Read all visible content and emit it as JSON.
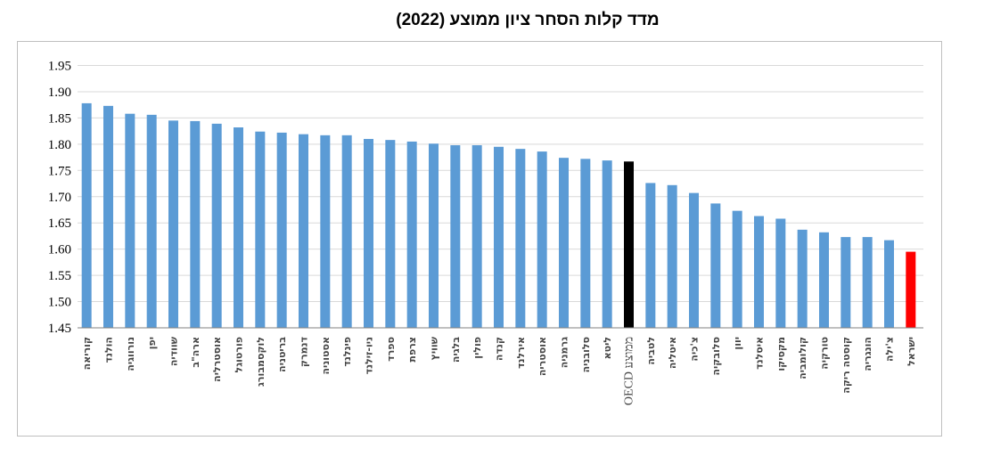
{
  "chart_data": {
    "type": "bar",
    "title": "מדד קלות הסחר ציון ממוצע (2022)",
    "xlabel": "",
    "ylabel": "",
    "ylim": [
      1.45,
      1.95
    ],
    "yticks": [
      "1.45",
      "1.50",
      "1.55",
      "1.60",
      "1.65",
      "1.70",
      "1.75",
      "1.80",
      "1.85",
      "1.90",
      "1.95"
    ],
    "grid": true,
    "legend": "none",
    "categories": [
      "קוריאה",
      "הולנד",
      "נורווגיה",
      "יפן",
      "שוודיה",
      "ארה\"ב",
      "אוסטרליה",
      "פורטוגל",
      "לוקסמבורג",
      "בריטניה",
      "דנמרק",
      "אסטוניה",
      "פינלנד",
      "ניו-זילנד",
      "ספרד",
      "צרפת",
      "שוויץ",
      "בלגיה",
      "פולין",
      "קנדה",
      "אירלנד",
      "אוסטריה",
      "גרמניה",
      "סלובניה",
      "ליטא",
      "OECD ממוצע",
      "לטביה",
      "איטליה",
      "צ'כיה",
      "סלובקיה",
      "יוון",
      "איסלנד",
      "מקסיקו",
      "קולומביה",
      "טורקיה",
      "קוסטה ריקה",
      "הונגריה",
      "צ'ילה",
      "ישראל"
    ],
    "values": [
      1.878,
      1.873,
      1.858,
      1.856,
      1.845,
      1.844,
      1.839,
      1.832,
      1.824,
      1.822,
      1.819,
      1.817,
      1.817,
      1.81,
      1.808,
      1.805,
      1.801,
      1.798,
      1.798,
      1.795,
      1.791,
      1.786,
      1.774,
      1.772,
      1.769,
      1.767,
      1.726,
      1.722,
      1.707,
      1.687,
      1.673,
      1.663,
      1.658,
      1.637,
      1.632,
      1.623,
      1.623,
      1.617,
      1.595
    ],
    "colors": {
      "default": "#5b9bd5",
      "OECD ממוצע": "#000000",
      "ישראל": "#ff0000",
      "grid": "#d9d9d9",
      "axis": "#808080",
      "frame": "#bfbfbf"
    }
  }
}
